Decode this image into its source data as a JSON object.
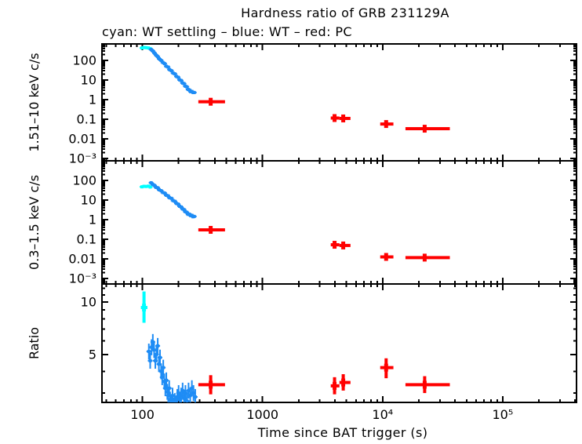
{
  "figure": {
    "title": "Hardness ratio of GRB 231129A",
    "subtitle": "cyan: WT settling – blue: WT – red: PC",
    "xlabel": "Time since BAT trigger (s)",
    "ylabels": {
      "hard": "1.51–10 keV c/s",
      "soft": "0.3–1.5 keV c/s",
      "ratio": "Ratio"
    }
  },
  "colors": {
    "wt_settling": "#00ffff",
    "wt": "#1e8cf5",
    "pc": "#ff0000",
    "axis": "#000000",
    "background": "#ffffff"
  },
  "chart_data": {
    "type": "scatter",
    "x_axis": {
      "label": "Time since BAT trigger (s)",
      "scale": "log",
      "range": [
        46,
        412000
      ],
      "major_ticks": [
        100,
        1000,
        10000,
        100000
      ],
      "major_tick_labels": [
        "100",
        "1000",
        "10⁴",
        "10⁵"
      ]
    },
    "panels": [
      {
        "name": "hard_band",
        "ylabel": "1.51–10 keV c/s",
        "yscale": "log",
        "yrange": [
          0.00076,
          690
        ],
        "ytick_values": [
          100,
          10,
          1,
          0.1,
          0.01,
          0.001
        ],
        "ytick_labels": [
          "100",
          "10",
          "1",
          "0.1",
          "0.01",
          "10⁻³"
        ],
        "extra_minor_ticks": [],
        "series": [
          {
            "name": "WT settling",
            "color": "#00ffff",
            "style": "point",
            "err_factor": [
              0.85,
              1.18
            ],
            "points": [
              [
                99,
                430
              ],
              [
                103,
                455
              ],
              [
                107,
                445
              ],
              [
                112,
                430
              ],
              [
                116,
                400
              ]
            ]
          },
          {
            "name": "WT",
            "color": "#1e8cf5",
            "style": "point",
            "err_factor": [
              0.85,
              1.18
            ],
            "points": [
              [
                118,
                360
              ],
              [
                122,
                300
              ],
              [
                126,
                235
              ],
              [
                130,
                185
              ],
              [
                134,
                155
              ],
              [
                138,
                120
              ],
              [
                143,
                100
              ],
              [
                148,
                78
              ],
              [
                153,
                68
              ],
              [
                158,
                50
              ],
              [
                163,
                46
              ],
              [
                168,
                34
              ],
              [
                174,
                30
              ],
              [
                180,
                22.5
              ],
              [
                186,
                20.5
              ],
              [
                192,
                15.2
              ],
              [
                198,
                13.8
              ],
              [
                204,
                10.2
              ],
              [
                210,
                9.4
              ],
              [
                216,
                7.0
              ],
              [
                222,
                6.5
              ],
              [
                228,
                4.8
              ],
              [
                234,
                4.5
              ],
              [
                240,
                3.3
              ],
              [
                246,
                3.1
              ],
              [
                252,
                2.55
              ],
              [
                258,
                2.6
              ],
              [
                264,
                2.3
              ],
              [
                270,
                2.3
              ]
            ]
          },
          {
            "name": "PC",
            "color": "#ff0000",
            "style": "cross",
            "points_err": [
              [
                370,
                292,
                487,
                0.78,
                0.62,
                0.98
              ],
              [
                3980,
                3700,
                4370,
                0.115,
                0.095,
                0.14
              ],
              [
                4700,
                4370,
                5400,
                0.11,
                0.09,
                0.133
              ],
              [
                10700,
                9550,
                12300,
                0.057,
                0.047,
                0.069
              ],
              [
                22400,
                15500,
                36300,
                0.033,
                0.027,
                0.04
              ]
            ]
          }
        ]
      },
      {
        "name": "soft_band",
        "ylabel": "0.3–1.5 keV c/s",
        "yscale": "log",
        "yrange": [
          0.00052,
          1000
        ],
        "ytick_values": [
          100,
          10,
          1,
          0.1,
          0.01,
          0.001
        ],
        "ytick_labels": [
          "100",
          "10",
          "1",
          "0.1",
          "0.01",
          "10⁻³"
        ],
        "extra_minor_ticks": [],
        "series": [
          {
            "name": "WT settling",
            "color": "#00ffff",
            "style": "point",
            "err_factor": [
              0.85,
              1.18
            ],
            "points": [
              [
                99,
                47
              ],
              [
                103,
                50
              ],
              [
                107,
                49
              ],
              [
                112,
                51
              ],
              [
                116,
                46
              ]
            ]
          },
          {
            "name": "WT",
            "color": "#1e8cf5",
            "style": "point",
            "err_factor": [
              0.85,
              1.18
            ],
            "points": [
              [
                118,
                76
              ],
              [
                122,
                62
              ],
              [
                126,
                55
              ],
              [
                130,
                44
              ],
              [
                134,
                42
              ],
              [
                138,
                33
              ],
              [
                143,
                30
              ],
              [
                148,
                24
              ],
              [
                153,
                22.5
              ],
              [
                158,
                17.5
              ],
              [
                163,
                16.5
              ],
              [
                168,
                13
              ],
              [
                174,
                12.2
              ],
              [
                180,
                9.3
              ],
              [
                186,
                8.6
              ],
              [
                192,
                6.7
              ],
              [
                198,
                6.2
              ],
              [
                204,
                4.8
              ],
              [
                210,
                4.4
              ],
              [
                216,
                3.5
              ],
              [
                222,
                3.2
              ],
              [
                228,
                2.5
              ],
              [
                234,
                2.35
              ],
              [
                240,
                1.85
              ],
              [
                246,
                1.9
              ],
              [
                252,
                1.6
              ],
              [
                258,
                1.65
              ],
              [
                264,
                1.4
              ],
              [
                270,
                1.45
              ]
            ]
          },
          {
            "name": "PC",
            "color": "#ff0000",
            "style": "cross",
            "points_err": [
              [
                370,
                292,
                487,
                0.3,
                0.25,
                0.36
              ],
              [
                3980,
                3700,
                4370,
                0.052,
                0.042,
                0.064
              ],
              [
                4700,
                4370,
                5400,
                0.048,
                0.039,
                0.059
              ],
              [
                10700,
                9550,
                12300,
                0.0125,
                0.01,
                0.0155
              ],
              [
                22400,
                15500,
                36300,
                0.0115,
                0.0092,
                0.014
              ]
            ]
          }
        ]
      },
      {
        "name": "ratio",
        "ylabel": "Ratio",
        "yscale": "log",
        "yrange": [
          2.65,
          12.7
        ],
        "ytick_values": [
          10,
          5
        ],
        "ytick_labels": [
          "10",
          "5"
        ],
        "extra_minor_ticks": [
          11,
          12
        ],
        "series": [
          {
            "name": "WT settling",
            "color": "#00ffff",
            "style": "cross",
            "points_err": [
              [
                103,
                97,
                110,
                9.3,
                7.6,
                11.5
              ]
            ]
          },
          {
            "name": "WT",
            "color": "#1e8cf5",
            "style": "point",
            "err_factor": [
              0.9,
              1.11
            ],
            "points": [
              [
                113,
                5.2
              ],
              [
                116,
                4.6
              ],
              [
                119,
                5.5
              ],
              [
                122,
                5.9
              ],
              [
                125,
                5.3
              ],
              [
                128,
                4.6
              ],
              [
                131,
                5.0
              ],
              [
                134,
                5.6
              ],
              [
                137,
                4.4
              ],
              [
                140,
                4.8
              ],
              [
                143,
                4.0
              ],
              [
                146,
                3.7
              ],
              [
                149,
                4.2
              ],
              [
                152,
                3.5
              ],
              [
                155,
                3.2
              ],
              [
                158,
                3.55
              ],
              [
                161,
                3.05
              ],
              [
                164,
                2.9
              ],
              [
                167,
                3.2
              ],
              [
                170,
                2.75
              ],
              [
                174,
                2.6
              ],
              [
                178,
                2.9
              ],
              [
                182,
                2.55
              ],
              [
                186,
                2.7
              ],
              [
                190,
                2.6
              ],
              [
                195,
                2.85
              ],
              [
                200,
                3.0
              ],
              [
                205,
                2.75
              ],
              [
                210,
                2.9
              ],
              [
                216,
                3.1
              ],
              [
                222,
                2.8
              ],
              [
                228,
                3.0
              ],
              [
                235,
                2.7
              ],
              [
                242,
                3.1
              ],
              [
                250,
                2.9
              ],
              [
                258,
                3.2
              ],
              [
                266,
                3.0
              ],
              [
                275,
                2.85
              ]
            ]
          },
          {
            "name": "PC",
            "color": "#ff0000",
            "style": "cross",
            "points_err": [
              [
                370,
                292,
                487,
                3.35,
                2.95,
                3.8
              ],
              [
                3980,
                3700,
                4370,
                3.3,
                2.95,
                3.7
              ],
              [
                4700,
                4370,
                5400,
                3.45,
                3.1,
                3.85
              ],
              [
                10700,
                9550,
                12300,
                4.2,
                3.65,
                4.75
              ],
              [
                22400,
                15500,
                36300,
                3.35,
                3.0,
                3.75
              ]
            ]
          }
        ]
      }
    ]
  }
}
